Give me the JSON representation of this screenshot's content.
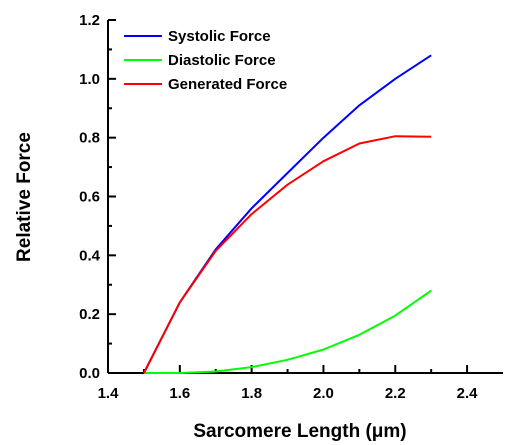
{
  "chart_data": {
    "type": "line",
    "xlabel": "Sarcomere Length (μm)",
    "ylabel": "Relative Force",
    "xlim": [
      1.4,
      2.5
    ],
    "ylim": [
      0.0,
      1.2
    ],
    "xticks": [
      "1.4",
      "1.6",
      "1.8",
      "2.0",
      "2.2",
      "2.4"
    ],
    "yticks": [
      "0.0",
      "0.2",
      "0.4",
      "0.6",
      "0.8",
      "1.0",
      "1.2"
    ],
    "grid": false,
    "legend_position": "top-left",
    "x": [
      1.5,
      1.6,
      1.7,
      1.8,
      1.9,
      2.0,
      2.1,
      2.2,
      2.3
    ],
    "series": [
      {
        "name": "Systolic Force",
        "color": "#0000ff",
        "values": [
          0.0,
          0.24,
          0.42,
          0.56,
          0.68,
          0.8,
          0.91,
          1.0,
          1.08
        ]
      },
      {
        "name": "Diastolic Force",
        "color": "#00ff00",
        "values": [
          0.0,
          0.0,
          0.005,
          0.02,
          0.045,
          0.08,
          0.13,
          0.195,
          0.28
        ]
      },
      {
        "name": "Generated Force",
        "color": "#ff0000",
        "values": [
          0.0,
          0.24,
          0.415,
          0.54,
          0.64,
          0.72,
          0.78,
          0.805,
          0.803
        ]
      }
    ]
  }
}
